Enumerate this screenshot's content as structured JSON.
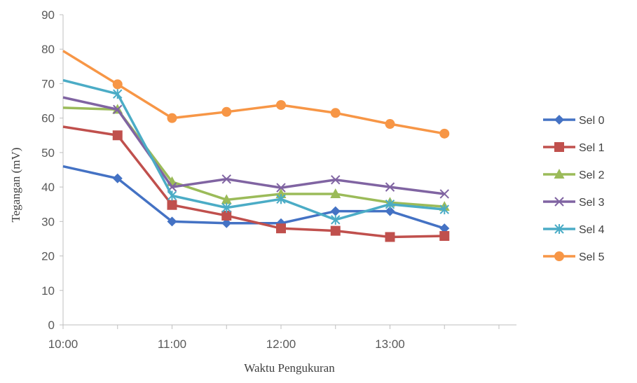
{
  "chart_data": {
    "type": "line",
    "title": "",
    "xlabel": "Waktu Pengukuran",
    "ylabel": "Tegangan (mV)",
    "x": [
      "10:00",
      "10:30",
      "11:00",
      "11:30",
      "12:00",
      "12:30",
      "13:00",
      "13:30"
    ],
    "x_tick_labels": [
      "10:00",
      "11:00",
      "12:00",
      "13:00"
    ],
    "y_ticks": [
      0,
      10,
      20,
      30,
      40,
      50,
      60,
      70,
      80,
      90
    ],
    "ylim": [
      0,
      90
    ],
    "grid": false,
    "legend_position": "right",
    "series": [
      {
        "name": "Sel 0",
        "color": "#4472C4",
        "marker": "diamond",
        "values": [
          46,
          42.5,
          30,
          29.5,
          29.5,
          33,
          33,
          28
        ]
      },
      {
        "name": "Sel 1",
        "color": "#C0504D",
        "marker": "square",
        "values": [
          57.5,
          55,
          34.8,
          31.7,
          28,
          27.3,
          25.5,
          25.8
        ]
      },
      {
        "name": "Sel 2",
        "color": "#9BBB59",
        "marker": "triangle",
        "values": [
          63,
          62.5,
          41.5,
          36.3,
          38,
          38,
          35.5,
          34.3
        ]
      },
      {
        "name": "Sel 3",
        "color": "#8064A2",
        "marker": "x",
        "values": [
          66,
          62.5,
          40,
          42.3,
          39.8,
          42.1,
          40,
          38
        ]
      },
      {
        "name": "Sel 4",
        "color": "#4BACC6",
        "marker": "star",
        "values": [
          71,
          67,
          37.5,
          34,
          36.5,
          30.5,
          35,
          33.5
        ]
      },
      {
        "name": "Sel 5",
        "color": "#F79646",
        "marker": "circle",
        "values": [
          79.5,
          69.8,
          60,
          61.8,
          63.8,
          61.5,
          58.3,
          55.5
        ]
      }
    ]
  }
}
